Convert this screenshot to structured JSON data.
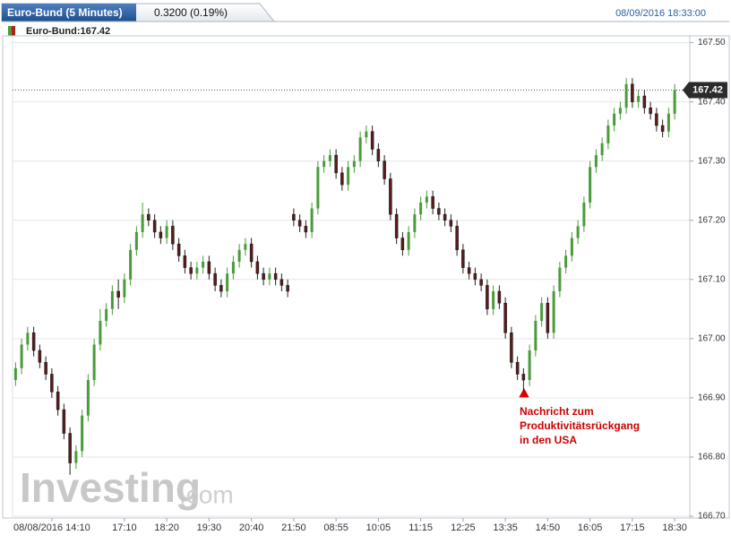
{
  "header": {
    "title": "Euro-Bund (5 Minutes)",
    "change": "0.3200 (0.19%)",
    "timestamp": "08/09/2016 18:33:00",
    "legend": "Euro-Bund:167.42"
  },
  "chart_data": {
    "type": "candlestick",
    "categories": [
      null,
      null,
      null,
      null,
      null,
      null,
      "08/08/2016 14:10",
      null,
      null,
      null,
      null,
      null,
      null,
      null,
      null,
      null,
      null,
      null,
      "17:10",
      null,
      null,
      null,
      null,
      null,
      null,
      "18:20",
      null,
      null,
      null,
      null,
      null,
      null,
      "19:30",
      null,
      null,
      null,
      null,
      null,
      null,
      "20:40",
      null,
      null,
      null,
      null,
      null,
      null,
      "21:50",
      null,
      null,
      null,
      null,
      null,
      null,
      "08:55",
      null,
      null,
      null,
      null,
      null,
      null,
      "10:05",
      null,
      null,
      null,
      null,
      null,
      null,
      "11:15",
      null,
      null,
      null,
      null,
      null,
      null,
      "12:25",
      null,
      null,
      null,
      null,
      null,
      null,
      "13:35",
      null,
      null,
      null,
      null,
      null,
      null,
      "14:50",
      null,
      null,
      null,
      null,
      null,
      null,
      "16:05",
      null,
      null,
      null,
      null,
      null,
      null,
      "17:15",
      null,
      null,
      null,
      null,
      null,
      null,
      "18:30"
    ],
    "open": [
      166.93,
      166.95,
      166.99,
      167.01,
      166.98,
      166.96,
      166.94,
      166.91,
      166.88,
      166.84,
      166.79,
      166.81,
      166.87,
      166.93,
      166.99,
      167.03,
      167.05,
      167.08,
      167.07,
      167.1,
      167.15,
      167.18,
      167.21,
      167.2,
      167.18,
      167.17,
      167.19,
      167.16,
      167.14,
      167.12,
      167.11,
      167.12,
      167.13,
      167.11,
      167.09,
      167.08,
      167.11,
      167.13,
      167.15,
      167.16,
      167.13,
      167.11,
      167.1,
      167.11,
      167.1,
      167.09,
      167.21,
      167.2,
      167.19,
      167.18,
      167.22,
      167.29,
      167.3,
      167.31,
      167.28,
      167.26,
      167.29,
      167.3,
      167.34,
      167.35,
      167.32,
      167.3,
      167.27,
      167.21,
      167.17,
      167.15,
      167.18,
      167.21,
      167.23,
      167.24,
      167.22,
      167.21,
      167.2,
      167.19,
      167.15,
      167.12,
      167.11,
      167.1,
      167.09,
      167.05,
      167.08,
      167.06,
      167.01,
      166.96,
      166.94,
      166.93,
      166.98,
      167.03,
      167.06,
      167.01,
      167.08,
      167.12,
      167.14,
      167.17,
      167.19,
      167.23,
      167.29,
      167.31,
      167.33,
      167.36,
      167.38,
      167.39,
      167.43,
      167.4,
      167.41,
      167.39,
      167.38,
      167.36,
      167.35,
      167.38
    ],
    "high": [
      166.96,
      167.0,
      167.02,
      167.02,
      166.99,
      166.97,
      166.95,
      166.92,
      166.89,
      166.85,
      166.82,
      166.88,
      166.94,
      167.0,
      167.05,
      167.06,
      167.09,
      167.1,
      167.11,
      167.16,
      167.19,
      167.23,
      167.22,
      167.21,
      167.19,
      167.2,
      167.2,
      167.17,
      167.15,
      167.13,
      167.13,
      167.14,
      167.14,
      167.12,
      167.1,
      167.12,
      167.14,
      167.16,
      167.17,
      167.17,
      167.14,
      167.12,
      167.12,
      167.12,
      167.11,
      167.1,
      167.22,
      167.21,
      167.2,
      167.23,
      167.3,
      167.31,
      167.32,
      167.32,
      167.29,
      167.3,
      167.31,
      167.35,
      167.36,
      167.36,
      167.33,
      167.31,
      167.28,
      167.22,
      167.18,
      167.19,
      167.22,
      167.24,
      167.25,
      167.25,
      167.23,
      167.22,
      167.21,
      167.2,
      167.16,
      167.13,
      167.12,
      167.11,
      167.1,
      167.09,
      167.09,
      167.07,
      167.02,
      166.97,
      166.95,
      166.99,
      167.04,
      167.07,
      167.07,
      167.09,
      167.13,
      167.15,
      167.18,
      167.2,
      167.24,
      167.3,
      167.32,
      167.34,
      167.37,
      167.39,
      167.4,
      167.44,
      167.44,
      167.42,
      167.42,
      167.4,
      167.39,
      167.37,
      167.39,
      167.43
    ],
    "low": [
      166.92,
      166.94,
      166.98,
      166.97,
      166.95,
      166.93,
      166.9,
      166.87,
      166.83,
      166.77,
      166.78,
      166.8,
      166.86,
      166.92,
      166.98,
      167.02,
      167.04,
      167.05,
      167.06,
      167.09,
      167.14,
      167.17,
      167.19,
      167.17,
      167.16,
      167.16,
      167.15,
      167.13,
      167.11,
      167.1,
      167.1,
      167.11,
      167.1,
      167.08,
      167.07,
      167.07,
      167.1,
      167.12,
      167.14,
      167.12,
      167.1,
      167.09,
      167.09,
      167.09,
      167.08,
      167.07,
      167.19,
      167.18,
      167.17,
      167.17,
      167.21,
      167.28,
      167.29,
      167.27,
      167.25,
      167.25,
      167.28,
      167.29,
      167.33,
      167.31,
      167.29,
      167.26,
      167.2,
      167.16,
      167.14,
      167.14,
      167.17,
      167.2,
      167.22,
      167.21,
      167.2,
      167.19,
      167.18,
      167.14,
      167.11,
      167.1,
      167.09,
      167.08,
      167.04,
      167.04,
      167.05,
      167.0,
      166.95,
      166.93,
      166.91,
      166.92,
      166.97,
      167.02,
      167.0,
      167.0,
      167.07,
      167.11,
      167.13,
      167.16,
      167.18,
      167.22,
      167.28,
      167.3,
      167.32,
      167.35,
      167.37,
      167.38,
      167.39,
      167.39,
      167.38,
      167.37,
      167.35,
      167.34,
      167.34,
      167.37
    ],
    "close": [
      166.95,
      166.99,
      167.01,
      166.98,
      166.96,
      166.94,
      166.91,
      166.88,
      166.84,
      166.79,
      166.81,
      166.87,
      166.93,
      166.99,
      167.03,
      167.05,
      167.08,
      167.07,
      167.1,
      167.15,
      167.18,
      167.21,
      167.2,
      167.18,
      167.17,
      167.19,
      167.16,
      167.14,
      167.12,
      167.11,
      167.12,
      167.13,
      167.11,
      167.09,
      167.08,
      167.11,
      167.13,
      167.15,
      167.16,
      167.13,
      167.11,
      167.1,
      167.11,
      167.1,
      167.09,
      167.08,
      167.2,
      167.19,
      167.18,
      167.22,
      167.29,
      167.3,
      167.31,
      167.28,
      167.26,
      167.29,
      167.3,
      167.34,
      167.35,
      167.32,
      167.3,
      167.27,
      167.21,
      167.17,
      167.15,
      167.18,
      167.21,
      167.23,
      167.24,
      167.22,
      167.21,
      167.2,
      167.19,
      167.15,
      167.12,
      167.11,
      167.1,
      167.09,
      167.05,
      167.08,
      167.06,
      167.01,
      166.96,
      166.94,
      166.93,
      166.98,
      167.03,
      167.06,
      167.01,
      167.08,
      167.12,
      167.14,
      167.17,
      167.19,
      167.23,
      167.29,
      167.31,
      167.33,
      167.36,
      167.38,
      167.39,
      167.43,
      167.4,
      167.41,
      167.39,
      167.38,
      167.36,
      167.35,
      167.38,
      167.42
    ],
    "up_color": "#4a9b3a",
    "down_color": "#5a1c1c",
    "ylim": [
      166.7,
      167.51
    ],
    "yticks": [
      {
        "value": 166.7,
        "label": "166.70"
      },
      {
        "value": 166.8,
        "label": "166.80"
      },
      {
        "value": 166.9,
        "label": "166.90"
      },
      {
        "value": 167,
        "label": "167.00"
      },
      {
        "value": 167.1,
        "label": "167.10"
      },
      {
        "value": 167.2,
        "label": "167.20"
      },
      {
        "value": 167.3,
        "label": "167.30"
      },
      {
        "value": 167.4,
        "label": "167.40"
      },
      {
        "value": 167.5,
        "label": "167.50"
      }
    ],
    "grid": true,
    "last_price": 167.42,
    "annotation": {
      "lines": [
        "Nachricht zum",
        "Produktivitätsrückgang",
        "in den USA"
      ],
      "color": "#cc0000"
    }
  },
  "watermark": [
    "Investing",
    ".com"
  ]
}
